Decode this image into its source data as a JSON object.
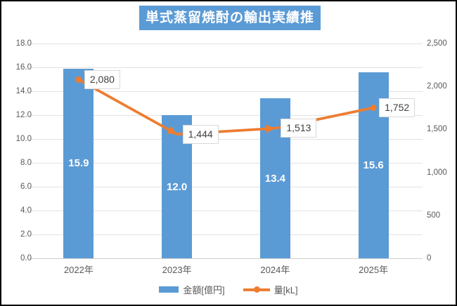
{
  "chart_data": {
    "type": "bar",
    "title": "単式蒸留焼酎の輸出実績推移",
    "categories": [
      "2022年",
      "2023年",
      "2024年",
      "2025年"
    ],
    "series": [
      {
        "name": "金額[億円]",
        "type": "bar",
        "axis": "left",
        "values": [
          15.9,
          12.0,
          13.4,
          15.6
        ],
        "labels": [
          "15.9",
          "12.0",
          "13.4",
          "15.6"
        ]
      },
      {
        "name": "量[kL]",
        "type": "line",
        "axis": "right",
        "values": [
          2080,
          1444,
          1513,
          1752
        ],
        "labels": [
          "2,080",
          "1,444",
          "1,513",
          "1,752"
        ],
        "point_styles": [
          "dot",
          "arrow",
          "arrow",
          "dot"
        ]
      }
    ],
    "left_axis": {
      "min": 0,
      "max": 18,
      "step": 2,
      "tick_labels": [
        "0.0",
        "2.0",
        "4.0",
        "6.0",
        "8.0",
        "10.0",
        "12.0",
        "14.0",
        "16.0",
        "18.0"
      ]
    },
    "right_axis": {
      "min": 0,
      "max": 2500,
      "step": 500,
      "tick_labels": [
        "0",
        "500",
        "1,000",
        "1,500",
        "2,000",
        "2,500"
      ]
    },
    "grid": true,
    "legend_position": "bottom"
  },
  "colors": {
    "bar": "#5B9BD5",
    "line": "#ED7D31",
    "title_bg": "#5B9BD5",
    "title_text": "#FFFFFF",
    "axis_text": "#595959",
    "grid": "#E2E2E2",
    "data_label_text": "#3F3F3F",
    "data_label_border": "#D9D9D9",
    "background": "#FFFFFF",
    "frame_border": "#000000"
  }
}
